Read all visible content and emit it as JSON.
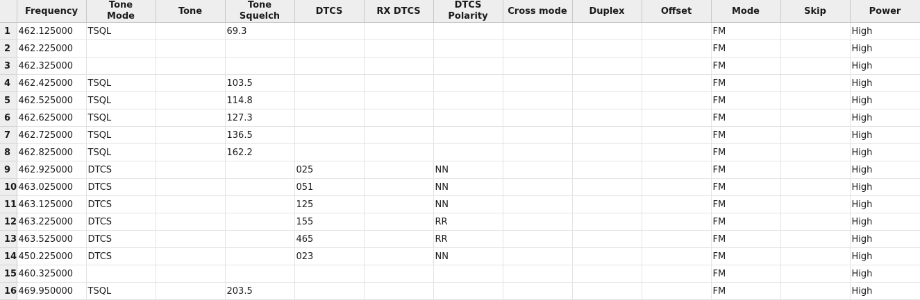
{
  "columns": [
    {
      "key": "frequency",
      "lines": [
        "Frequency"
      ]
    },
    {
      "key": "tone_mode",
      "lines": [
        "Tone",
        "Mode"
      ]
    },
    {
      "key": "tone",
      "lines": [
        "Tone"
      ]
    },
    {
      "key": "tone_squelch",
      "lines": [
        "Tone",
        "Squelch"
      ]
    },
    {
      "key": "dtcs",
      "lines": [
        "DTCS"
      ]
    },
    {
      "key": "rx_dtcs",
      "lines": [
        "RX DTCS"
      ]
    },
    {
      "key": "dtcs_polarity",
      "lines": [
        "DTCS",
        "Polarity"
      ]
    },
    {
      "key": "cross_mode",
      "lines": [
        "Cross mode"
      ]
    },
    {
      "key": "duplex",
      "lines": [
        "Duplex"
      ]
    },
    {
      "key": "offset",
      "lines": [
        "Offset"
      ]
    },
    {
      "key": "mode",
      "lines": [
        "Mode"
      ]
    },
    {
      "key": "skip",
      "lines": [
        "Skip"
      ]
    },
    {
      "key": "power",
      "lines": [
        "Power"
      ]
    }
  ],
  "rows": [
    {
      "num": "1",
      "cells": [
        "462.125000",
        "TSQL",
        "",
        "69.3",
        "",
        "",
        "",
        "",
        "",
        "",
        "FM",
        "",
        "High"
      ]
    },
    {
      "num": "2",
      "cells": [
        "462.225000",
        "",
        "",
        "",
        "",
        "",
        "",
        "",
        "",
        "",
        "FM",
        "",
        "High"
      ]
    },
    {
      "num": "3",
      "cells": [
        "462.325000",
        "",
        "",
        "",
        "",
        "",
        "",
        "",
        "",
        "",
        "FM",
        "",
        "High"
      ]
    },
    {
      "num": "4",
      "cells": [
        "462.425000",
        "TSQL",
        "",
        "103.5",
        "",
        "",
        "",
        "",
        "",
        "",
        "FM",
        "",
        "High"
      ]
    },
    {
      "num": "5",
      "cells": [
        "462.525000",
        "TSQL",
        "",
        "114.8",
        "",
        "",
        "",
        "",
        "",
        "",
        "FM",
        "",
        "High"
      ]
    },
    {
      "num": "6",
      "cells": [
        "462.625000",
        "TSQL",
        "",
        "127.3",
        "",
        "",
        "",
        "",
        "",
        "",
        "FM",
        "",
        "High"
      ]
    },
    {
      "num": "7",
      "cells": [
        "462.725000",
        "TSQL",
        "",
        "136.5",
        "",
        "",
        "",
        "",
        "",
        "",
        "FM",
        "",
        "High"
      ]
    },
    {
      "num": "8",
      "cells": [
        "462.825000",
        "TSQL",
        "",
        "162.2",
        "",
        "",
        "",
        "",
        "",
        "",
        "FM",
        "",
        "High"
      ]
    },
    {
      "num": "9",
      "cells": [
        "462.925000",
        "DTCS",
        "",
        "",
        "025",
        "",
        "NN",
        "",
        "",
        "",
        "FM",
        "",
        "High"
      ]
    },
    {
      "num": "10",
      "cells": [
        "463.025000",
        "DTCS",
        "",
        "",
        "051",
        "",
        "NN",
        "",
        "",
        "",
        "FM",
        "",
        "High"
      ]
    },
    {
      "num": "11",
      "cells": [
        "463.125000",
        "DTCS",
        "",
        "",
        "125",
        "",
        "NN",
        "",
        "",
        "",
        "FM",
        "",
        "High"
      ]
    },
    {
      "num": "12",
      "cells": [
        "463.225000",
        "DTCS",
        "",
        "",
        "155",
        "",
        "RR",
        "",
        "",
        "",
        "FM",
        "",
        "High"
      ]
    },
    {
      "num": "13",
      "cells": [
        "463.525000",
        "DTCS",
        "",
        "",
        "465",
        "",
        "RR",
        "",
        "",
        "",
        "FM",
        "",
        "High"
      ]
    },
    {
      "num": "14",
      "cells": [
        "450.225000",
        "DTCS",
        "",
        "",
        "023",
        "",
        "NN",
        "",
        "",
        "",
        "FM",
        "",
        "High"
      ]
    },
    {
      "num": "15",
      "cells": [
        "460.325000",
        "",
        "",
        "",
        "",
        "",
        "",
        "",
        "",
        "",
        "FM",
        "",
        "High"
      ]
    },
    {
      "num": "16",
      "cells": [
        "469.950000",
        "TSQL",
        "",
        "203.5",
        "",
        "",
        "",
        "",
        "",
        "",
        "FM",
        "",
        "High"
      ]
    }
  ]
}
